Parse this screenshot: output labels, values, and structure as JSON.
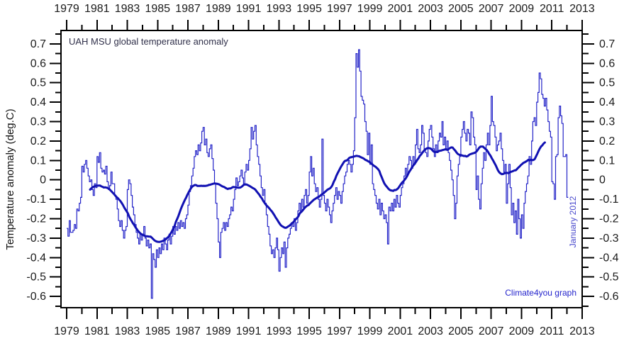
{
  "chart_data": {
    "type": "line",
    "title": "UAH MSU global temperature anomaly",
    "ylabel": "Temperature anomaly (deg.C)",
    "right_label": "January 2012",
    "credit": "Climate4you graph",
    "grid": false,
    "x_axis": {
      "min_year": 1979,
      "max_year": 2013,
      "tick_interval_years": 1,
      "labeled_every_years": 2,
      "labels": [
        "1979",
        "1981",
        "1983",
        "1985",
        "1987",
        "1989",
        "1991",
        "1993",
        "1995",
        "1997",
        "1999",
        "2001",
        "2003",
        "2005",
        "2007",
        "2009",
        "2011",
        "2013"
      ]
    },
    "y_axis": {
      "min": -0.6,
      "max": 0.7,
      "unit": "deg.C",
      "major_step": 0.1,
      "minor_step": 0.05,
      "labels": [
        "0.7",
        "0.6",
        "0.5",
        "0.4",
        "0.3",
        "0.2",
        "0.1",
        "0",
        "-0.1",
        "-0.2",
        "-0.3",
        "-0.4",
        "-0.5",
        "-0.6"
      ]
    },
    "series": [
      {
        "name": "UAH MSU monthly global temperature anomaly",
        "style": "step-line",
        "color": "#2424c8",
        "start": "1979-01",
        "end": "2012-01",
        "step_months": 1,
        "values": [
          -0.25,
          -0.29,
          -0.21,
          -0.27,
          -0.27,
          -0.26,
          -0.23,
          -0.25,
          -0.15,
          -0.16,
          -0.12,
          -0.09,
          0.07,
          0.04,
          0.08,
          0.1,
          0.06,
          0.02,
          -0.01,
          0.0,
          -0.05,
          -0.08,
          -0.02,
          -0.04,
          0.12,
          0.09,
          0.14,
          0.06,
          0.04,
          0.05,
          0.03,
          0.07,
          -0.01,
          -0.05,
          -0.03,
          0.04,
          -0.02,
          -0.02,
          -0.08,
          -0.1,
          -0.15,
          -0.21,
          -0.24,
          -0.21,
          -0.26,
          -0.3,
          -0.26,
          -0.24,
          -0.05,
          0.0,
          -0.02,
          -0.08,
          -0.14,
          -0.18,
          -0.23,
          -0.27,
          -0.3,
          -0.33,
          -0.28,
          -0.31,
          -0.28,
          -0.24,
          -0.3,
          -0.34,
          -0.31,
          -0.35,
          -0.33,
          -0.61,
          -0.38,
          -0.41,
          -0.45,
          -0.36,
          -0.4,
          -0.35,
          -0.38,
          -0.33,
          -0.36,
          -0.3,
          -0.33,
          -0.36,
          -0.31,
          -0.28,
          -0.33,
          -0.29,
          -0.24,
          -0.28,
          -0.24,
          -0.26,
          -0.22,
          -0.25,
          -0.21,
          -0.24,
          -0.22,
          -0.25,
          -0.2,
          -0.18,
          -0.13,
          -0.06,
          -0.03,
          0.02,
          0.06,
          0.12,
          0.15,
          0.13,
          0.18,
          0.15,
          0.19,
          0.25,
          0.27,
          0.18,
          0.21,
          0.14,
          0.12,
          0.16,
          0.18,
          0.11,
          0.05,
          -0.02,
          -0.12,
          -0.2,
          -0.32,
          -0.4,
          -0.27,
          -0.25,
          -0.22,
          -0.26,
          -0.22,
          -0.24,
          -0.2,
          -0.18,
          -0.14,
          -0.16,
          -0.1,
          -0.05,
          0.01,
          -0.03,
          -0.01,
          0.02,
          0.05,
          0.01,
          -0.02,
          0.04,
          0.08,
          0.05,
          0.1,
          0.16,
          0.27,
          0.21,
          0.25,
          0.28,
          0.18,
          0.12,
          0.08,
          0.02,
          -0.04,
          -0.08,
          -0.05,
          -0.12,
          -0.18,
          -0.24,
          -0.28,
          -0.34,
          -0.38,
          -0.36,
          -0.4,
          -0.35,
          -0.3,
          -0.36,
          -0.47,
          -0.4,
          -0.35,
          -0.38,
          -0.32,
          -0.45,
          -0.35,
          -0.3,
          -0.28,
          -0.25,
          -0.22,
          -0.24,
          -0.2,
          -0.26,
          -0.22,
          -0.16,
          -0.12,
          -0.16,
          -0.1,
          -0.14,
          -0.08,
          -0.05,
          -0.12,
          -0.08,
          0.04,
          0.12,
          0.02,
          0.06,
          -0.02,
          -0.06,
          -0.04,
          -0.1,
          -0.14,
          -0.1,
          0.21,
          -0.08,
          -0.12,
          -0.16,
          -0.1,
          -0.14,
          -0.18,
          -0.22,
          -0.16,
          -0.12,
          -0.08,
          -0.04,
          -0.1,
          -0.06,
          -0.08,
          -0.12,
          -0.06,
          -0.02,
          0.02,
          0.04,
          0.08,
          0.1,
          0.08,
          0.04,
          0.08,
          0.15,
          0.32,
          0.65,
          0.58,
          0.67,
          0.56,
          0.43,
          0.41,
          0.39,
          0.3,
          0.25,
          0.13,
          0.24,
          0.08,
          0.18,
          -0.02,
          -0.05,
          -0.08,
          -0.12,
          -0.15,
          -0.1,
          -0.18,
          -0.12,
          -0.16,
          -0.2,
          -0.18,
          -0.22,
          -0.33,
          -0.14,
          -0.16,
          -0.12,
          -0.16,
          -0.1,
          -0.14,
          -0.08,
          -0.12,
          -0.14,
          -0.08,
          -0.04,
          -0.02,
          0.02,
          0.06,
          0.02,
          0.08,
          0.12,
          0.1,
          0.06,
          0.12,
          0.08,
          0.18,
          0.26,
          0.16,
          0.14,
          0.18,
          0.28,
          0.24,
          0.16,
          0.14,
          0.12,
          0.2,
          0.26,
          0.28,
          0.22,
          0.16,
          0.12,
          0.18,
          0.14,
          0.2,
          0.24,
          0.22,
          0.3,
          0.18,
          0.22,
          0.16,
          0.2,
          0.14,
          0.1,
          0.05,
          0.0,
          -0.08,
          -0.2,
          -0.12,
          0.02,
          0.08,
          0.12,
          0.22,
          0.26,
          0.3,
          0.24,
          0.2,
          0.26,
          0.24,
          0.18,
          0.35,
          0.32,
          0.22,
          0.18,
          -0.05,
          0.02,
          -0.1,
          -0.15,
          -0.02,
          0.06,
          0.14,
          0.1,
          0.18,
          0.24,
          0.18,
          0.28,
          0.43,
          0.3,
          0.28,
          0.22,
          0.15,
          0.18,
          0.2,
          0.24,
          0.16,
          0.1,
          0.04,
          0.08,
          -0.12,
          -0.02,
          0.08,
          -0.04,
          -0.18,
          -0.12,
          -0.22,
          -0.16,
          -0.28,
          -0.1,
          -0.2,
          -0.3,
          -0.18,
          -0.25,
          -0.12,
          -0.06,
          -0.02,
          0.02,
          0.12,
          0.08,
          0.2,
          0.3,
          0.32,
          0.28,
          0.4,
          0.45,
          0.55,
          0.52,
          0.44,
          0.42,
          0.38,
          0.42,
          0.36,
          0.3,
          0.25,
          0.22,
          -0.01,
          -0.02,
          -0.1,
          0.12,
          0.13,
          0.32,
          0.38,
          0.33,
          0.29,
          0.12,
          0.12,
          0.13,
          -0.09
        ]
      },
      {
        "name": "37-month running mean",
        "style": "line",
        "color": "#1111b2",
        "derived_from": "series 0",
        "window_months": 37
      }
    ],
    "colors": {
      "axis": "#000000",
      "tick_labels": "#1a1a1a",
      "monthly_line": "#2424c8",
      "running_mean_line": "#1111b2",
      "title": "#30304a",
      "right_label": "#4a4acd",
      "credit": "#2424cc",
      "background": "#ffffff"
    }
  }
}
